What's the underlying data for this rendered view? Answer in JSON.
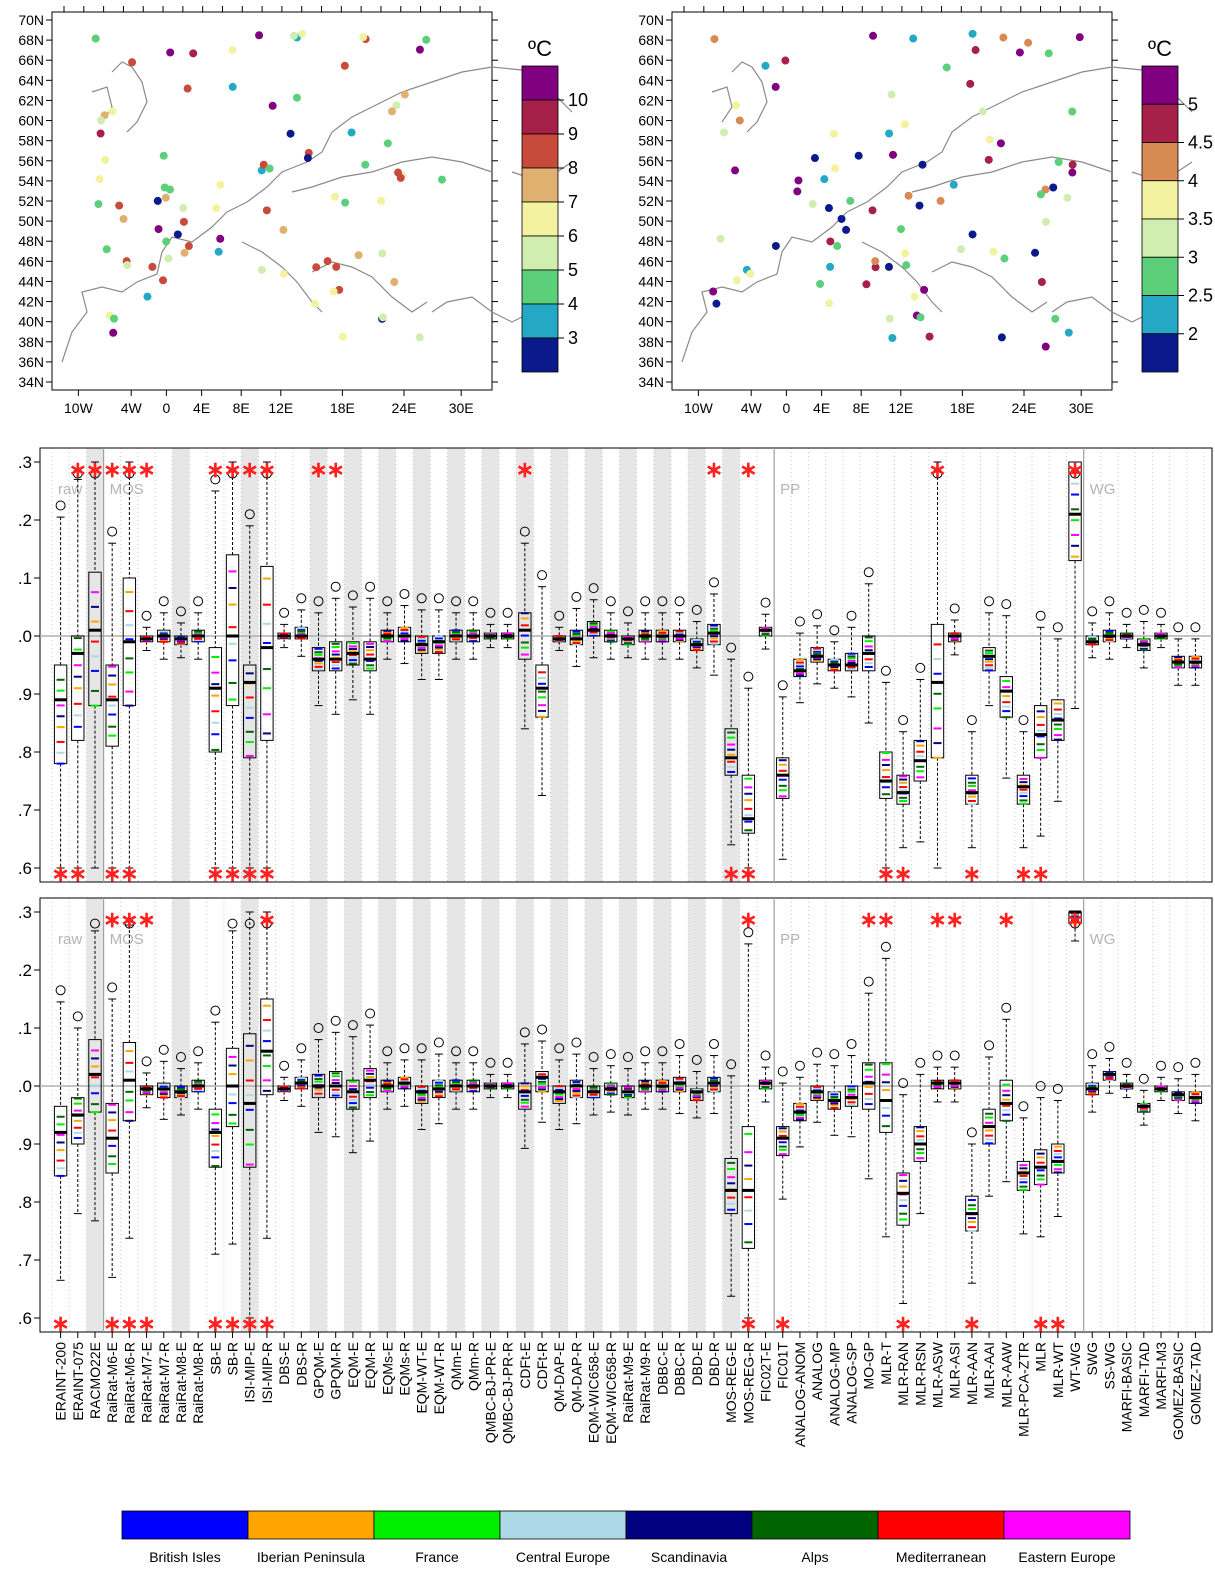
{
  "maps": [
    {
      "unit_label": "ºC",
      "lat_labels": [
        "70N",
        "68N",
        "66N",
        "64N",
        "62N",
        "60N",
        "58N",
        "56N",
        "54N",
        "52N",
        "50N",
        "48N",
        "46N",
        "44N",
        "42N",
        "40N",
        "38N",
        "36N",
        "34N"
      ],
      "lon_labels": [
        "10W",
        "4W",
        "0",
        "4E",
        "8E",
        "12E",
        "18E",
        "24E",
        "30E"
      ],
      "legend_colors": [
        "#800080",
        "#a6204a",
        "#c84a3a",
        "#e0b070",
        "#f2f2a0",
        "#cfeeb0",
        "#5ccf7a",
        "#24a8c4",
        "#0a1a8c"
      ],
      "legend_labels": [
        "10",
        "9",
        "8",
        "7",
        "6",
        "5",
        "4",
        "3"
      ]
    },
    {
      "unit_label": "ºC",
      "lat_labels": [
        "70N",
        "68N",
        "66N",
        "64N",
        "62N",
        "60N",
        "58N",
        "56N",
        "54N",
        "52N",
        "50N",
        "48N",
        "46N",
        "44N",
        "42N",
        "40N",
        "38N",
        "36N",
        "34N"
      ],
      "lon_labels": [
        "10W",
        "4W",
        "0",
        "4E",
        "8E",
        "12E",
        "18E",
        "24E",
        "30E"
      ],
      "legend_colors": [
        "#800080",
        "#a6204a",
        "#d88a55",
        "#f2f2a0",
        "#cfeeb0",
        "#5ccf7a",
        "#24a8c4",
        "#0a1a8c"
      ],
      "legend_labels": [
        "5",
        "4.5",
        "4",
        "3.5",
        "3",
        "2.5",
        "2"
      ]
    }
  ],
  "chart_data": {
    "type": "boxplot",
    "ylim": [
      0.6,
      1.3
    ],
    "yticks": [
      ".3",
      ".2",
      ".1",
      ".0",
      ".9",
      ".8",
      ".7",
      ".6"
    ],
    "section_labels": [
      "raw",
      "MOS",
      "PP",
      "WG"
    ],
    "categories": [
      "ERAINT-200",
      "ERAINT-075",
      "RACMO22E",
      "RaiRat-M6-E",
      "RaiRat-M6-R",
      "RaiRat-M7-E",
      "RaiRat-M7-R",
      "RaiRat-M8-E",
      "RaiRat-M8-R",
      "SB-E",
      "SB-R",
      "ISI-MIP-E",
      "ISI-MIP-R",
      "DBS-E",
      "DBS-R",
      "GPQM-E",
      "GPQM-R",
      "EQM-E",
      "EQM-R",
      "EQMs-E",
      "EQMs-R",
      "EQM-WT-E",
      "EQM-WT-R",
      "QMm-E",
      "QMm-R",
      "QMBC-BJ-PR-E",
      "QMBC-BJ-PR-R",
      "CDFt-E",
      "CDFt-R",
      "QM-DAP-E",
      "QM-DAP-R",
      "EQM-WIC658-E",
      "EQM-WIC658-R",
      "RaiRat-M9-E",
      "RaiRat-M9-R",
      "DBBC-E",
      "DBBC-R",
      "DBD-E",
      "DBD-R",
      "MOS-REG-E",
      "MOS-REG-R",
      "FIC02T-E",
      "FIC01T",
      "ANALOG-ANOM",
      "ANALOG",
      "ANALOG-MP",
      "ANALOG-SP",
      "MO-GP",
      "MLR-T",
      "MLR-RAN",
      "MLR-RSN",
      "MLR-ASW",
      "MLR-ASI",
      "MLR-AAN",
      "MLR-AAI",
      "MLR-AAW",
      "MLR-PCA-ZTR",
      "MLR",
      "MLR-WT",
      "WT-WG",
      "SWG",
      "SS-WG",
      "MARFI-BASIC",
      "MARFI-TAD",
      "MARFI-M3",
      "GOMEZ-BASIC",
      "GOMEZ-TAD"
    ],
    "shaded_indices": [
      2,
      7,
      11,
      15,
      17,
      19,
      21,
      23,
      25,
      27,
      29,
      31,
      33,
      35,
      37,
      39
    ],
    "panels": [
      {
        "medians": [
          0.89,
          0.97,
          1.01,
          0.89,
          0.99,
          0.995,
          1.0,
          0.995,
          1.0,
          0.91,
          1.0,
          0.92,
          0.98,
          1.0,
          1.0,
          0.96,
          0.96,
          0.97,
          0.96,
          1.0,
          1.0,
          0.985,
          0.99,
          1.0,
          1.0,
          1.0,
          1.0,
          1.01,
          0.91,
          0.995,
          0.995,
          1.01,
          1.0,
          0.995,
          1.0,
          1.0,
          1.0,
          0.985,
          1.005,
          0.79,
          0.685,
          1.01,
          0.76,
          0.94,
          0.965,
          0.95,
          0.95,
          0.97,
          0.75,
          0.73,
          0.785,
          0.92,
          1.0,
          0.73,
          0.965,
          0.905,
          0.74,
          0.83,
          0.855,
          1.21,
          0.99,
          1.0,
          1.0,
          0.985,
          1.0,
          0.955,
          0.955
        ],
        "q1": [
          0.78,
          0.82,
          0.88,
          0.81,
          0.88,
          0.99,
          0.99,
          0.985,
          0.99,
          0.8,
          0.88,
          0.79,
          0.82,
          0.995,
          0.995,
          0.94,
          0.94,
          0.95,
          0.94,
          0.99,
          0.99,
          0.97,
          0.97,
          0.99,
          0.99,
          0.995,
          0.995,
          0.96,
          0.86,
          0.99,
          0.985,
          1.0,
          0.99,
          0.985,
          0.99,
          0.99,
          0.99,
          0.975,
          0.985,
          0.76,
          0.66,
          1.0,
          0.72,
          0.93,
          0.955,
          0.94,
          0.94,
          0.94,
          0.72,
          0.71,
          0.75,
          0.79,
          0.99,
          0.71,
          0.94,
          0.86,
          0.71,
          0.79,
          0.82,
          1.13,
          0.985,
          0.99,
          0.995,
          0.975,
          0.995,
          0.945,
          0.945
        ],
        "q3": [
          0.95,
          1.0,
          1.11,
          0.95,
          1.1,
          1.0,
          1.01,
          1.0,
          1.01,
          0.98,
          1.14,
          0.95,
          1.12,
          1.005,
          1.015,
          0.98,
          0.99,
          0.99,
          0.99,
          1.01,
          1.015,
          1.0,
          1.0,
          1.01,
          1.01,
          1.005,
          1.005,
          1.04,
          0.95,
          1.0,
          1.01,
          1.025,
          1.01,
          1.0,
          1.01,
          1.01,
          1.01,
          0.995,
          1.02,
          0.84,
          0.76,
          1.015,
          0.79,
          0.96,
          0.98,
          0.96,
          0.97,
          1.0,
          0.8,
          0.76,
          0.82,
          1.02,
          1.005,
          0.76,
          0.98,
          0.93,
          0.76,
          0.88,
          0.89,
          1.3,
          1.0,
          1.01,
          1.005,
          0.995,
          1.005,
          0.965,
          0.965
        ],
        "stars_top": [
          1,
          2,
          3,
          4,
          5,
          9,
          10,
          11,
          12,
          15,
          16,
          27,
          38,
          40,
          51,
          59
        ],
        "stars_bottom": [
          0,
          1,
          3,
          4,
          9,
          10,
          11,
          12,
          39,
          40,
          48,
          49,
          53,
          56,
          57
        ]
      },
      {
        "medians": [
          0.92,
          0.95,
          1.02,
          0.91,
          1.01,
          0.995,
          0.995,
          0.99,
          1.0,
          0.92,
          1.0,
          0.97,
          1.06,
          0.995,
          1.005,
          1.0,
          1.0,
          0.99,
          1.01,
          1.0,
          1.005,
          0.99,
          0.995,
          1.0,
          1.0,
          1.0,
          1.0,
          0.99,
          1.015,
          0.99,
          1.0,
          0.99,
          0.995,
          0.99,
          1.0,
          1.0,
          1.005,
          0.99,
          1.005,
          0.82,
          0.82,
          1.005,
          0.91,
          0.955,
          0.99,
          0.975,
          0.98,
          1.005,
          0.975,
          0.815,
          0.9,
          1.005,
          1.005,
          0.78,
          0.93,
          0.97,
          0.85,
          0.86,
          0.87,
          1.3,
          0.995,
          1.02,
          1.0,
          0.965,
          0.995,
          0.985,
          0.98
        ],
        "q1": [
          0.845,
          0.9,
          0.955,
          0.85,
          0.94,
          0.985,
          0.98,
          0.98,
          0.99,
          0.86,
          0.93,
          0.86,
          0.985,
          0.99,
          0.995,
          0.98,
          0.98,
          0.96,
          0.98,
          0.99,
          0.995,
          0.97,
          0.98,
          0.99,
          0.99,
          0.995,
          0.995,
          0.96,
          0.99,
          0.97,
          0.98,
          0.98,
          0.985,
          0.98,
          0.99,
          0.99,
          0.99,
          0.975,
          0.99,
          0.78,
          0.72,
          0.995,
          0.88,
          0.94,
          0.975,
          0.96,
          0.965,
          0.96,
          0.92,
          0.76,
          0.87,
          0.995,
          0.995,
          0.75,
          0.9,
          0.94,
          0.82,
          0.83,
          0.85,
          1.28,
          0.985,
          1.01,
          0.995,
          0.955,
          0.99,
          0.975,
          0.97
        ],
        "q3": [
          0.965,
          0.98,
          1.08,
          0.97,
          1.075,
          1.0,
          1.005,
          1.0,
          1.01,
          0.96,
          1.065,
          1.09,
          1.15,
          1.0,
          1.015,
          1.02,
          1.025,
          1.01,
          1.03,
          1.01,
          1.015,
          1.0,
          1.01,
          1.01,
          1.01,
          1.005,
          1.005,
          1.005,
          1.025,
          1.0,
          1.01,
          1.0,
          1.005,
          1.0,
          1.01,
          1.01,
          1.015,
          0.995,
          1.015,
          0.875,
          0.93,
          1.01,
          0.93,
          0.97,
          1.0,
          0.99,
          1.0,
          1.04,
          1.04,
          0.85,
          0.93,
          1.01,
          1.01,
          0.81,
          0.96,
          1.01,
          0.87,
          0.89,
          0.9,
          1.3,
          1.005,
          1.025,
          1.005,
          0.97,
          1.0,
          0.99,
          0.99
        ],
        "stars_top": [
          3,
          4,
          5,
          12,
          40,
          47,
          48,
          51,
          52,
          55,
          59
        ],
        "stars_bottom": [
          0,
          3,
          4,
          5,
          9,
          10,
          11,
          12,
          40,
          42,
          49,
          53,
          57,
          58
        ]
      }
    ]
  },
  "legend": {
    "items": [
      {
        "label": "British Isles",
        "color": "#0000ff"
      },
      {
        "label": "Iberian Peninsula",
        "color": "#ffa500"
      },
      {
        "label": "France",
        "color": "#00ee00"
      },
      {
        "label": "Central Europe",
        "color": "#add8e6"
      },
      {
        "label": "Scandinavia",
        "color": "#000080"
      },
      {
        "label": "Alps",
        "color": "#006400"
      },
      {
        "label": "Mediterranean",
        "color": "#ff0000"
      },
      {
        "label": "Eastern Europe",
        "color": "#ff00ff"
      }
    ]
  }
}
